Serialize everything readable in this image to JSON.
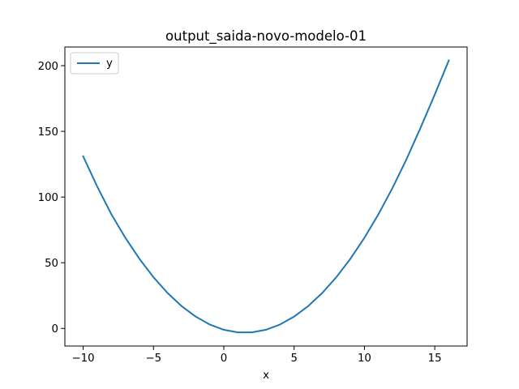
{
  "chart_data": {
    "type": "line",
    "title": "output_saida-novo-modelo-01",
    "xlabel": "x",
    "ylabel": "",
    "xlim": [
      -11.3,
      17.3
    ],
    "ylim": [
      -13.4,
      214.2
    ],
    "xticks": [
      -10,
      -5,
      0,
      5,
      10,
      15
    ],
    "xtick_labels": [
      "−10",
      "−5",
      "0",
      "5",
      "10",
      "15"
    ],
    "yticks": [
      0,
      50,
      100,
      150,
      200
    ],
    "ytick_labels": [
      "0",
      "50",
      "100",
      "150",
      "200"
    ],
    "grid": false,
    "legend": "upper-left",
    "series": [
      {
        "name": "y",
        "color": "#1f77b4",
        "x": [
          -10,
          -9,
          -8,
          -7,
          -6,
          -5,
          -4,
          -3,
          -2,
          -1,
          0,
          1,
          2,
          3,
          4,
          5,
          6,
          7,
          8,
          9,
          10,
          11,
          12,
          13,
          14,
          15,
          16
        ],
        "y": [
          131,
          108,
          87,
          69,
          53,
          39,
          27,
          17,
          9,
          3,
          -1,
          -3,
          -3,
          -1,
          3,
          9,
          17,
          27,
          39,
          53,
          69,
          87,
          107,
          129,
          153,
          178,
          204
        ]
      }
    ]
  }
}
